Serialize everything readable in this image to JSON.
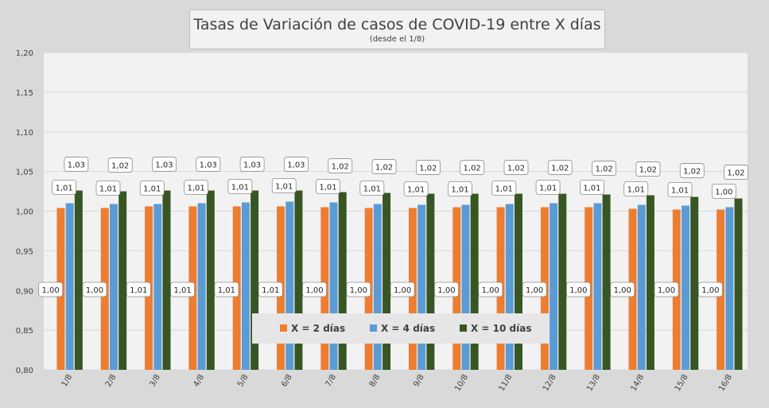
{
  "chart_data": {
    "type": "bar",
    "title": "Tasas de Variación de casos de COVID-19 entre X días",
    "subtitle": "(desde el 1/8)",
    "xlabel": "",
    "ylabel": "",
    "ylim": [
      0.8,
      1.2
    ],
    "yticks": [
      "0,80",
      "0,85",
      "0,90",
      "0,95",
      "1,00",
      "1,05",
      "1,10",
      "1,15",
      "1,20"
    ],
    "ytick_values": [
      0.8,
      0.85,
      0.9,
      0.95,
      1.0,
      1.05,
      1.1,
      1.15,
      1.2
    ],
    "grid": true,
    "legend_position": "bottom-center-inside",
    "categories": [
      "1/8",
      "2/8",
      "3/8",
      "4/8",
      "5/8",
      "6/8",
      "7/8",
      "8/8",
      "9/8",
      "10/8",
      "11/8",
      "12/8",
      "13/8",
      "14/8",
      "15/8",
      "16/8"
    ],
    "series": [
      {
        "name": "X = 2 días",
        "color": "#ed7d31",
        "values": [
          1.004,
          1.004,
          1.006,
          1.006,
          1.006,
          1.006,
          1.005,
          1.004,
          1.004,
          1.005,
          1.005,
          1.005,
          1.005,
          1.003,
          1.002,
          1.002
        ],
        "labels": [
          "1,00",
          "1,00",
          "1,01",
          "1,01",
          "1,01",
          "1,01",
          "1,00",
          "1,00",
          "1,00",
          "1,00",
          "1,00",
          "1,00",
          "1,00",
          "1,00",
          "1,00",
          "1,00"
        ]
      },
      {
        "name": "X = 4 días",
        "color": "#5b9bd5",
        "values": [
          1.01,
          1.009,
          1.009,
          1.01,
          1.011,
          1.012,
          1.011,
          1.009,
          1.008,
          1.008,
          1.009,
          1.01,
          1.01,
          1.008,
          1.007,
          1.005
        ],
        "labels": [
          "1,01",
          "1,01",
          "1,01",
          "1,01",
          "1,01",
          "1,01",
          "1,01",
          "1,01",
          "1,01",
          "1,01",
          "1,01",
          "1,01",
          "1,01",
          "1,01",
          "1,01",
          "1,00"
        ]
      },
      {
        "name": "X = 10 días",
        "color": "#375623",
        "values": [
          1.026,
          1.025,
          1.026,
          1.026,
          1.026,
          1.026,
          1.024,
          1.023,
          1.022,
          1.022,
          1.022,
          1.022,
          1.021,
          1.02,
          1.018,
          1.016
        ],
        "labels": [
          "1,03",
          "1,02",
          "1,03",
          "1,03",
          "1,03",
          "1,03",
          "1,02",
          "1,02",
          "1,02",
          "1,02",
          "1,02",
          "1,02",
          "1,02",
          "1,02",
          "1,02",
          "1,02"
        ]
      }
    ]
  }
}
